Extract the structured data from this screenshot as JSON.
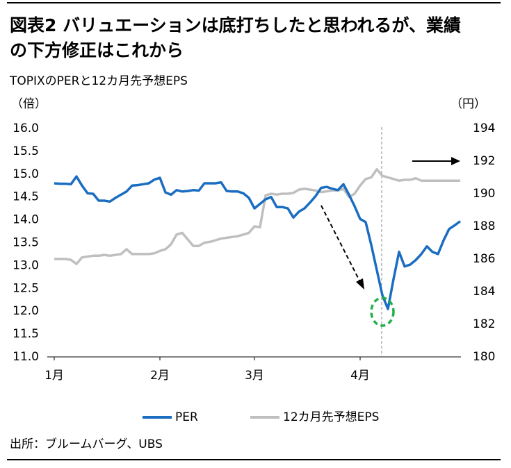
{
  "chart_data": {
    "type": "line",
    "title_lines": [
      "図表2 バリュエーションは底打ちしたと思われるが、業績",
      "の下方修正はこれから"
    ],
    "subtitle": "TOPIXのPERと12カ月先予想EPS",
    "ylabel": "（倍）",
    "y2label": "（円）",
    "source": "出所：ブルームバーグ、UBS",
    "categories": [
      "1月",
      null,
      null,
      null,
      null,
      null,
      null,
      null,
      null,
      null,
      null,
      null,
      null,
      null,
      null,
      null,
      null,
      null,
      null,
      "2月",
      null,
      null,
      null,
      null,
      null,
      null,
      null,
      null,
      null,
      null,
      null,
      null,
      null,
      null,
      null,
      null,
      "3月",
      null,
      null,
      null,
      null,
      null,
      null,
      null,
      null,
      null,
      null,
      null,
      null,
      null,
      null,
      null,
      null,
      null,
      null,
      "4月",
      null,
      null,
      null,
      null,
      null,
      null,
      null,
      null,
      null,
      null,
      null,
      null,
      null,
      null,
      null,
      null,
      null,
      null
    ],
    "series": [
      {
        "name": "PER",
        "color": "#1a6dc0",
        "values": [
          14.8,
          14.79,
          14.79,
          14.78,
          14.95,
          14.75,
          14.58,
          14.57,
          14.42,
          14.42,
          14.4,
          14.48,
          14.55,
          14.62,
          14.75,
          14.76,
          14.78,
          14.8,
          14.88,
          14.92,
          14.6,
          14.55,
          14.65,
          14.62,
          14.63,
          14.65,
          14.64,
          14.8,
          14.8,
          14.8,
          14.82,
          14.63,
          14.62,
          14.62,
          14.58,
          14.48,
          14.25,
          14.35,
          14.45,
          14.5,
          14.28,
          14.28,
          14.25,
          14.05,
          14.18,
          14.25,
          14.38,
          14.52,
          14.7,
          14.72,
          14.68,
          14.65,
          14.78,
          14.55,
          14.3,
          14.02,
          13.95,
          13.45,
          12.9,
          12.35,
          12.05,
          12.7,
          13.3,
          12.98,
          13.02,
          13.12,
          13.25,
          13.42,
          13.3,
          13.25,
          13.55,
          13.8,
          13.88,
          13.97
        ]
      },
      {
        "name": "12カ月先予想EPS",
        "color": "#bfbfbf",
        "axis": "y2",
        "values": [
          186.0,
          186.0,
          186.0,
          185.95,
          185.7,
          186.1,
          186.15,
          186.2,
          186.2,
          186.25,
          186.2,
          186.25,
          186.3,
          186.6,
          186.3,
          186.3,
          186.3,
          186.3,
          186.35,
          186.5,
          186.6,
          186.9,
          187.5,
          187.6,
          187.2,
          186.8,
          186.8,
          187.0,
          187.05,
          187.15,
          187.25,
          187.3,
          187.35,
          187.4,
          187.5,
          187.6,
          188.0,
          187.95,
          189.9,
          190.0,
          189.95,
          190.0,
          190.0,
          190.05,
          190.25,
          190.3,
          190.25,
          190.2,
          190.1,
          190.15,
          190.2,
          190.2,
          190.3,
          189.8,
          190.0,
          190.5,
          190.9,
          191.0,
          191.5,
          191.1,
          191.0,
          190.9,
          190.8,
          190.85,
          190.85,
          190.95,
          190.8,
          190.8,
          190.8,
          190.8,
          190.8,
          190.8,
          190.8,
          190.8
        ]
      }
    ],
    "ylim": [
      11,
      16
    ],
    "yticks": [
      {
        "value": 11,
        "label": "11.0"
      },
      11.5,
      {
        "value": 12,
        "label": "12.0"
      },
      12.5,
      {
        "value": 13,
        "label": "13.0"
      },
      13.5,
      {
        "value": 14,
        "label": "14.0"
      },
      14.5,
      {
        "value": 15,
        "label": "15.0"
      },
      15.5,
      {
        "value": 16,
        "label": "16.0"
      }
    ],
    "y2lim": [
      180,
      194
    ],
    "y2ticks": [
      180,
      182,
      184,
      186,
      188,
      190,
      192,
      194
    ],
    "legend": "bottom"
  }
}
